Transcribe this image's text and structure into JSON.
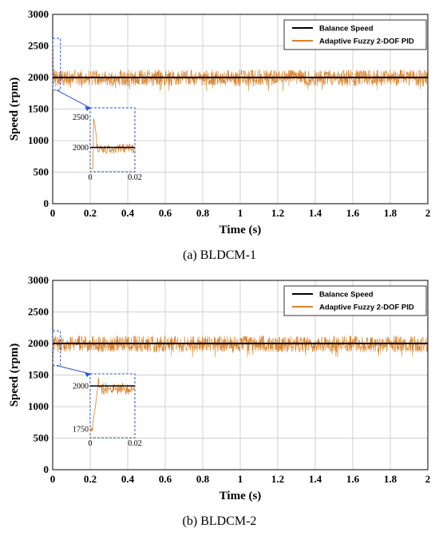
{
  "colors": {
    "balance": "#000000",
    "controller": "#d9822b",
    "controller_legend": "#d9822b",
    "zoom_box": "#2a55d4",
    "grid": "#d0d0d0"
  },
  "chart_data": [
    {
      "type": "line",
      "caption": "(a) BLDCM-1",
      "xlabel": "Time (s)",
      "ylabel": "Speed (rpm)",
      "xlim": [
        0,
        2
      ],
      "ylim": [
        0,
        3000
      ],
      "xticks": [
        "0",
        "0.2",
        "0.4",
        "0.6",
        "0.8",
        "1",
        "1.2",
        "1.4",
        "1.6",
        "1.8",
        "2"
      ],
      "yticks": [
        "0",
        "500",
        "1000",
        "1500",
        "2000",
        "2500",
        "3000"
      ],
      "grid": true,
      "legend": {
        "position": "top-right",
        "entries": [
          "Balance Speed",
          "Adaptive Fuzzy 2-DOF PID"
        ]
      },
      "series": [
        {
          "name": "Balance Speed",
          "x": [
            0,
            2
          ],
          "y": [
            2000,
            2000
          ]
        },
        {
          "name": "Adaptive Fuzzy 2-DOF PID",
          "mean": 2000,
          "noise_band": [
            1820,
            2150
          ],
          "initial_peak": 2480
        }
      ],
      "inset": {
        "xlim": [
          0,
          0.02
        ],
        "ylim": [
          1600,
          2650
        ],
        "xticks": [
          "0",
          "0.02"
        ],
        "yticks": [
          "2000",
          "2500"
        ],
        "balance": 2000,
        "zoom_region": {
          "x": [
            0,
            0.02
          ],
          "y": [
            1800,
            2620
          ]
        }
      }
    },
    {
      "type": "line",
      "caption": "(b) BLDCM-2",
      "xlabel": "Time (s)",
      "ylabel": "Speed (rpm)",
      "xlim": [
        0,
        2
      ],
      "ylim": [
        0,
        3000
      ],
      "xticks": [
        "0",
        "0.2",
        "0.4",
        "0.6",
        "0.8",
        "1",
        "1.2",
        "1.4",
        "1.6",
        "1.8",
        "2"
      ],
      "yticks": [
        "0",
        "500",
        "1000",
        "1500",
        "2000",
        "2500",
        "3000"
      ],
      "grid": true,
      "legend": {
        "position": "top-right",
        "entries": [
          "Balance Speed",
          "Adaptive Fuzzy 2-DOF PID"
        ]
      },
      "series": [
        {
          "name": "Balance Speed",
          "x": [
            0,
            2
          ],
          "y": [
            2000,
            2000
          ]
        },
        {
          "name": "Adaptive Fuzzy 2-DOF PID",
          "mean": 2000,
          "noise_band": [
            1820,
            2150
          ],
          "initial_dip": 1720
        }
      ],
      "inset": {
        "xlim": [
          0,
          0.02
        ],
        "ylim": [
          1700,
          2070
        ],
        "xticks": [
          "0",
          "0.02"
        ],
        "yticks": [
          "1750",
          "2000"
        ],
        "balance": 2000,
        "zoom_region": {
          "x": [
            0,
            0.02
          ],
          "y": [
            1650,
            2200
          ]
        }
      }
    }
  ]
}
